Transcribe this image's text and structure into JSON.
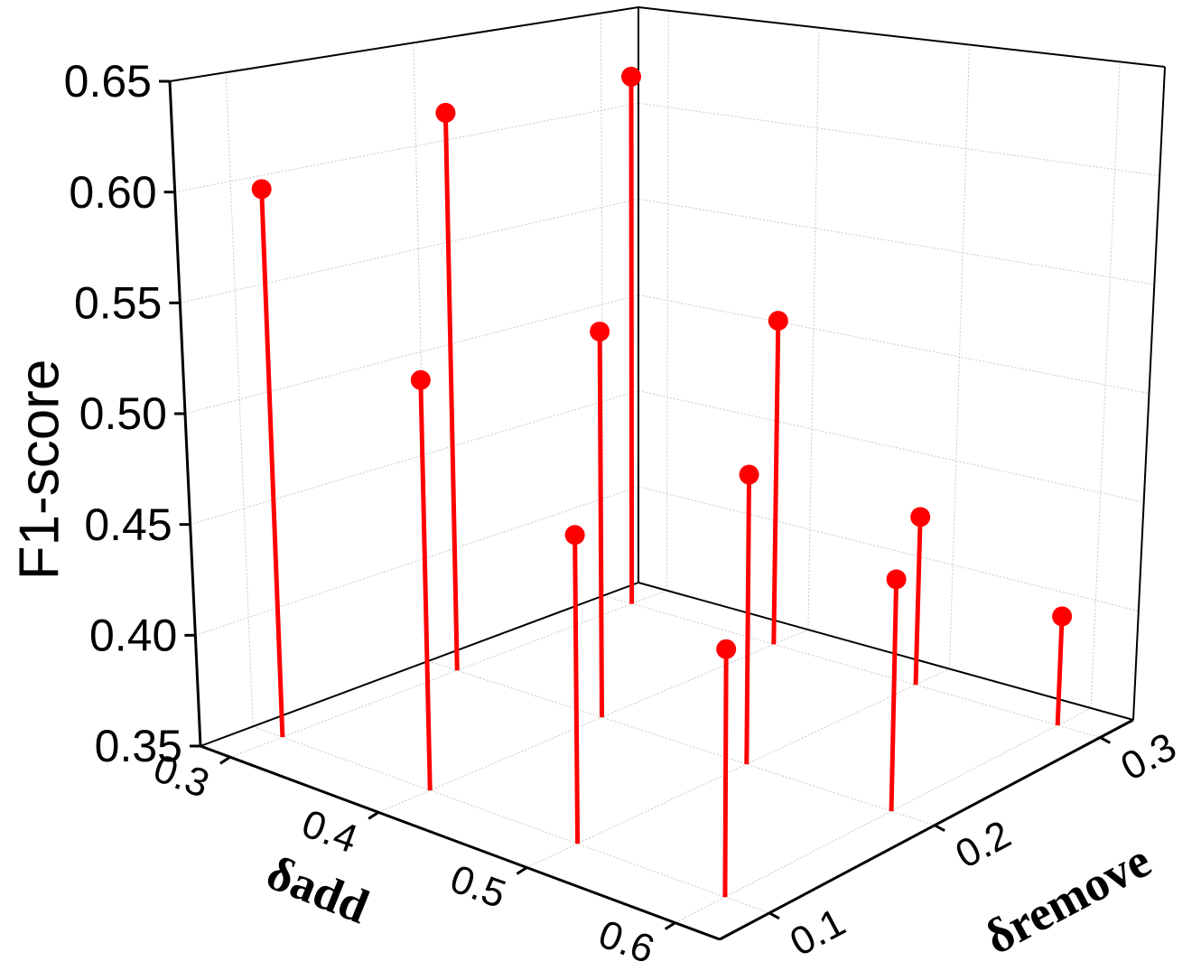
{
  "chart_data": {
    "type": "stem3d",
    "xlabel": "δadd",
    "ylabel": "δremove",
    "zlabel": "F1-score",
    "xlim": [
      0.28,
      0.63
    ],
    "ylim": [
      0.07,
      0.32
    ],
    "zlim": [
      0.35,
      0.65
    ],
    "xticks": [
      0.3,
      0.4,
      0.5,
      0.6
    ],
    "yticks": [
      0.1,
      0.2,
      0.3
    ],
    "zticks": [
      0.35,
      {
        "value": 0.4,
        "label": "0.40"
      },
      0.45,
      {
        "value": 0.5,
        "label": "0.50"
      },
      0.55,
      {
        "value": 0.6,
        "label": "0.60"
      },
      0.65
    ],
    "grid": true,
    "series": [
      {
        "color": "#ff0000",
        "x": [
          0.3,
          0.3,
          0.3,
          0.4,
          0.4,
          0.4,
          0.5,
          0.5,
          0.5,
          0.6,
          0.6,
          0.6
        ],
        "y": [
          0.1,
          0.2,
          0.3,
          0.1,
          0.2,
          0.3,
          0.1,
          0.2,
          0.3,
          0.1,
          0.2,
          0.3
        ],
        "z": [
          0.6,
          0.62,
          0.62,
          0.53,
          0.53,
          0.51,
          0.48,
          0.48,
          0.43,
          0.45,
          0.45,
          0.4
        ]
      }
    ]
  }
}
